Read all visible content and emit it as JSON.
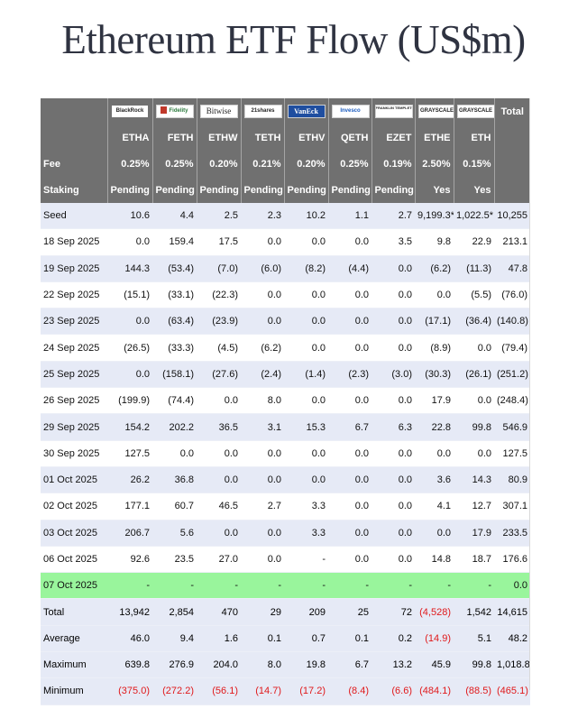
{
  "title": "Ethereum ETF Flow (US$m)",
  "colors": {
    "header_bg": "#707070",
    "band": "#e6eaf6",
    "highlight": "#99f59c",
    "negative": "#e0191b"
  },
  "issuers": [
    {
      "logo": "blackrock",
      "text": "BlackRock"
    },
    {
      "logo": "fidelity",
      "text": "Fidelity"
    },
    {
      "logo": "bitwise",
      "text": "Bitwise"
    },
    {
      "logo": "21shares",
      "text": "21shares"
    },
    {
      "logo": "vaneck",
      "text": "VanEck"
    },
    {
      "logo": "invesco",
      "text": "Invesco"
    },
    {
      "logo": "franklin",
      "text": "FRANKLIN TEMPLETON"
    },
    {
      "logo": "grayscale",
      "text": "GRAYSCALE"
    },
    {
      "logo": "grayscale",
      "text": "GRAYSCALE"
    }
  ],
  "total_label": "Total",
  "tickers": [
    "ETHA",
    "FETH",
    "ETHW",
    "TETH",
    "ETHV",
    "QETH",
    "EZET",
    "ETHE",
    "ETH"
  ],
  "fee_label": "Fee",
  "fees": [
    "0.25%",
    "0.25%",
    "0.20%",
    "0.21%",
    "0.20%",
    "0.25%",
    "0.19%",
    "2.50%",
    "0.15%"
  ],
  "staking_label": "Staking",
  "staking": [
    "Pending",
    "Pending",
    "Pending",
    "Pending",
    "Pending",
    "Pending",
    "Pending",
    "Yes",
    "Yes"
  ],
  "rows": [
    {
      "label": "Seed",
      "style": "alt",
      "values": [
        "10.6",
        "4.4",
        "2.5",
        "2.3",
        "10.2",
        "1.1",
        "2.7",
        "9,199.3*",
        "1,022.5*",
        "10,255"
      ]
    },
    {
      "label": "18 Sep 2025",
      "style": "white",
      "values": [
        "0.0",
        "159.4",
        "17.5",
        "0.0",
        "0.0",
        "0.0",
        "3.5",
        "9.8",
        "22.9",
        "213.1"
      ]
    },
    {
      "label": "19 Sep 2025",
      "style": "alt",
      "values": [
        "144.3",
        "(53.4)",
        "(7.0)",
        "(6.0)",
        "(8.2)",
        "(4.4)",
        "0.0",
        "(6.2)",
        "(11.3)",
        "47.8"
      ]
    },
    {
      "label": "22 Sep 2025",
      "style": "white",
      "values": [
        "(15.1)",
        "(33.1)",
        "(22.3)",
        "0.0",
        "0.0",
        "0.0",
        "0.0",
        "0.0",
        "(5.5)",
        "(76.0)"
      ]
    },
    {
      "label": "23 Sep 2025",
      "style": "alt",
      "values": [
        "0.0",
        "(63.4)",
        "(23.9)",
        "0.0",
        "0.0",
        "0.0",
        "0.0",
        "(17.1)",
        "(36.4)",
        "(140.8)"
      ]
    },
    {
      "label": "24 Sep 2025",
      "style": "white",
      "values": [
        "(26.5)",
        "(33.3)",
        "(4.5)",
        "(6.2)",
        "0.0",
        "0.0",
        "0.0",
        "(8.9)",
        "0.0",
        "(79.4)"
      ]
    },
    {
      "label": "25 Sep 2025",
      "style": "alt",
      "values": [
        "0.0",
        "(158.1)",
        "(27.6)",
        "(2.4)",
        "(1.4)",
        "(2.3)",
        "(3.0)",
        "(30.3)",
        "(26.1)",
        "(251.2)"
      ]
    },
    {
      "label": "26 Sep 2025",
      "style": "white",
      "values": [
        "(199.9)",
        "(74.4)",
        "0.0",
        "8.0",
        "0.0",
        "0.0",
        "0.0",
        "17.9",
        "0.0",
        "(248.4)"
      ]
    },
    {
      "label": "29 Sep 2025",
      "style": "alt",
      "values": [
        "154.2",
        "202.2",
        "36.5",
        "3.1",
        "15.3",
        "6.7",
        "6.3",
        "22.8",
        "99.8",
        "546.9"
      ]
    },
    {
      "label": "30 Sep 2025",
      "style": "white",
      "values": [
        "127.5",
        "0.0",
        "0.0",
        "0.0",
        "0.0",
        "0.0",
        "0.0",
        "0.0",
        "0.0",
        "127.5"
      ]
    },
    {
      "label": "01 Oct 2025",
      "style": "alt",
      "values": [
        "26.2",
        "36.8",
        "0.0",
        "0.0",
        "0.0",
        "0.0",
        "0.0",
        "3.6",
        "14.3",
        "80.9"
      ]
    },
    {
      "label": "02 Oct 2025",
      "style": "white",
      "values": [
        "177.1",
        "60.7",
        "46.5",
        "2.7",
        "3.3",
        "0.0",
        "0.0",
        "4.1",
        "12.7",
        "307.1"
      ]
    },
    {
      "label": "03 Oct 2025",
      "style": "alt",
      "values": [
        "206.7",
        "5.6",
        "0.0",
        "0.0",
        "3.3",
        "0.0",
        "0.0",
        "0.0",
        "17.9",
        "233.5"
      ]
    },
    {
      "label": "06 Oct 2025",
      "style": "white",
      "values": [
        "92.6",
        "23.5",
        "27.0",
        "0.0",
        "-",
        "0.0",
        "0.0",
        "14.8",
        "18.7",
        "176.6"
      ]
    },
    {
      "label": "07 Oct 2025",
      "style": "hl",
      "values": [
        "-",
        "-",
        "-",
        "-",
        "-",
        "-",
        "-",
        "-",
        "-",
        "0.0"
      ]
    }
  ],
  "summary": [
    {
      "label": "Total",
      "values": [
        "13,942",
        "2,854",
        "470",
        "29",
        "209",
        "25",
        "72",
        "(4,528)",
        "1,542",
        "14,615"
      ]
    },
    {
      "label": "Average",
      "values": [
        "46.0",
        "9.4",
        "1.6",
        "0.1",
        "0.7",
        "0.1",
        "0.2",
        "(14.9)",
        "5.1",
        "48.2"
      ]
    },
    {
      "label": "Maximum",
      "values": [
        "639.8",
        "276.9",
        "204.0",
        "8.0",
        "19.8",
        "6.7",
        "13.2",
        "45.9",
        "99.8",
        "1,018.8"
      ]
    },
    {
      "label": "Minimum",
      "values": [
        "(375.0)",
        "(272.2)",
        "(56.1)",
        "(14.7)",
        "(17.2)",
        "(8.4)",
        "(6.6)",
        "(484.1)",
        "(88.5)",
        "(465.1)"
      ]
    }
  ]
}
